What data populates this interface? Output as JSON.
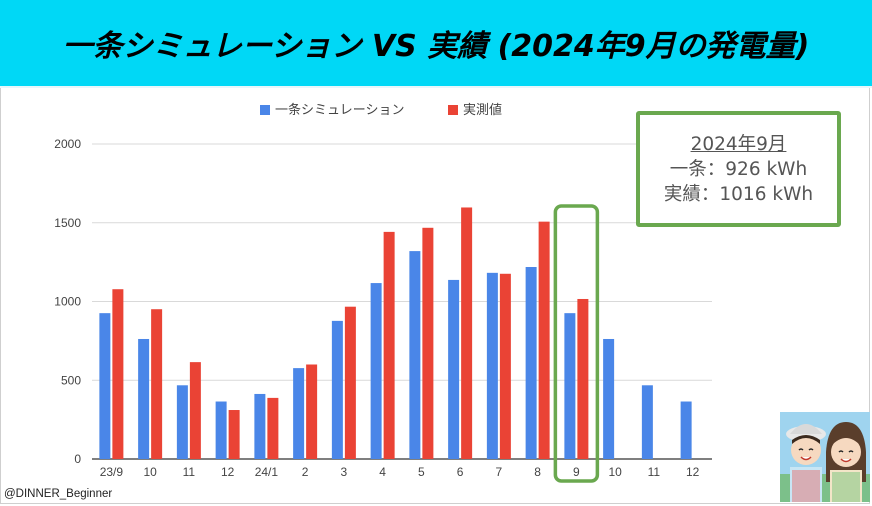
{
  "title": "一条シミュレーション VS 実績 (2024年9月の発電量)",
  "credit": "@DINNER_Beginner",
  "info_box": {
    "month": "2024年9月",
    "line1": "一条：926 kWh",
    "line2": "実績：1016 kWh"
  },
  "colors": {
    "banner": "#00d8f6",
    "simulation": "#4a86e8",
    "actual": "#ea4335",
    "highlight": "#6aa84f"
  },
  "icons": [
    "avatar-couple-icon"
  ],
  "chart_data": {
    "type": "bar",
    "categories": [
      "23/9",
      "10",
      "11",
      "12",
      "24/1",
      "2",
      "3",
      "4",
      "5",
      "6",
      "7",
      "8",
      "9",
      "10",
      "11",
      "12"
    ],
    "series": [
      {
        "name": "一条シミュレーション",
        "color": "#4a86e8",
        "values": [
          926,
          762,
          468,
          365,
          413,
          577,
          877,
          1117,
          1320,
          1137,
          1182,
          1219,
          926,
          762,
          468,
          365
        ]
      },
      {
        "name": "実測値",
        "color": "#ea4335",
        "values": [
          1078,
          951,
          615,
          311,
          388,
          600,
          967,
          1442,
          1468,
          1597,
          1176,
          1507,
          1016,
          null,
          null,
          null
        ]
      }
    ],
    "yticks": [
      0,
      500,
      1000,
      1500,
      2000
    ],
    "ylim": [
      0,
      2000
    ],
    "grid": true,
    "legend": "top-center",
    "highlight_category_index": 12
  }
}
